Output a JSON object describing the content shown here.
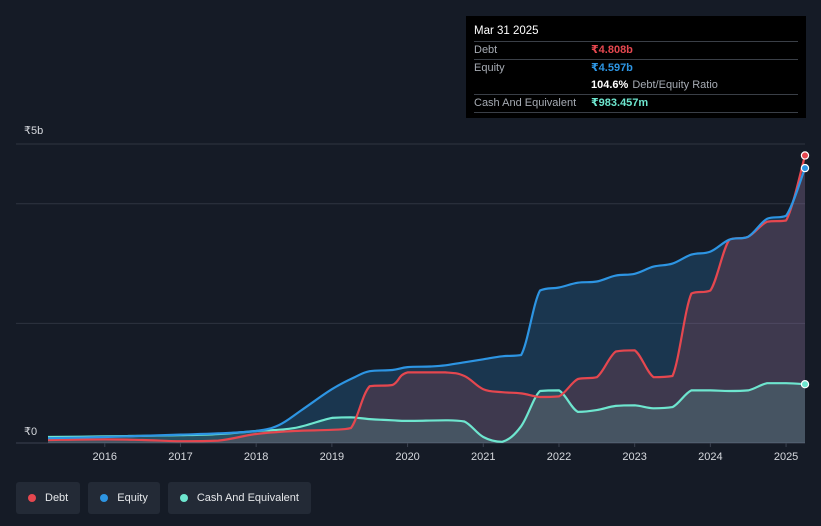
{
  "colors": {
    "debt": "#e5474f",
    "equity": "#2d95e3",
    "cash": "#6ee6cf",
    "grid": "#2e3440",
    "axis_text": "#d6d9de"
  },
  "tooltip": {
    "date": "Mar 31 2025",
    "debt_label": "Debt",
    "debt_value": "₹4.808b",
    "equity_label": "Equity",
    "equity_value": "₹4.597b",
    "ratio_value": "104.6%",
    "ratio_label": "Debt/Equity Ratio",
    "cash_label": "Cash And Equivalent",
    "cash_value": "₹983.457m"
  },
  "legend": {
    "debt": "Debt",
    "equity": "Equity",
    "cash": "Cash And Equivalent"
  },
  "chart_data": {
    "type": "area",
    "title": "",
    "xlabel": "",
    "ylabel": "",
    "y_unit": "₹b",
    "ylim": [
      0,
      5
    ],
    "xlim": [
      2015.25,
      2025.25
    ],
    "y_tick_labels": [
      "₹0",
      "₹5b"
    ],
    "x_tick_labels": [
      "2016",
      "2017",
      "2018",
      "2019",
      "2020",
      "2021",
      "2022",
      "2023",
      "2024",
      "2025"
    ],
    "x_ticks": [
      2016,
      2017,
      2018,
      2019,
      2020,
      2021,
      2022,
      2023,
      2024,
      2025
    ],
    "gridlines": [
      0,
      2,
      4,
      5
    ],
    "series": [
      {
        "name": "Equity",
        "color_key": "equity",
        "points": [
          [
            2015.25,
            0.08
          ],
          [
            2016.0,
            0.1
          ],
          [
            2016.5,
            0.12
          ],
          [
            2017.0,
            0.14
          ],
          [
            2017.5,
            0.16
          ],
          [
            2018.0,
            0.2
          ],
          [
            2018.3,
            0.3
          ],
          [
            2018.6,
            0.55
          ],
          [
            2019.0,
            0.9
          ],
          [
            2019.3,
            1.1
          ],
          [
            2019.5,
            1.2
          ],
          [
            2019.8,
            1.22
          ],
          [
            2020.0,
            1.27
          ],
          [
            2020.3,
            1.28
          ],
          [
            2020.5,
            1.3
          ],
          [
            2020.75,
            1.35
          ],
          [
            2021.0,
            1.4
          ],
          [
            2021.25,
            1.45
          ],
          [
            2021.5,
            1.47
          ],
          [
            2021.75,
            2.55
          ],
          [
            2022.0,
            2.6
          ],
          [
            2022.25,
            2.68
          ],
          [
            2022.5,
            2.7
          ],
          [
            2022.75,
            2.8
          ],
          [
            2023.0,
            2.83
          ],
          [
            2023.25,
            2.95
          ],
          [
            2023.5,
            3.0
          ],
          [
            2023.75,
            3.15
          ],
          [
            2024.0,
            3.2
          ],
          [
            2024.25,
            3.4
          ],
          [
            2024.5,
            3.45
          ],
          [
            2024.75,
            3.75
          ],
          [
            2025.0,
            3.8
          ],
          [
            2025.25,
            4.597
          ]
        ]
      },
      {
        "name": "Debt",
        "color_key": "debt",
        "points": [
          [
            2015.25,
            0.05
          ],
          [
            2016.0,
            0.06
          ],
          [
            2016.5,
            0.05
          ],
          [
            2017.0,
            0.03
          ],
          [
            2017.5,
            0.04
          ],
          [
            2018.0,
            0.15
          ],
          [
            2018.5,
            0.2
          ],
          [
            2019.0,
            0.22
          ],
          [
            2019.25,
            0.25
          ],
          [
            2019.5,
            0.95
          ],
          [
            2019.8,
            0.97
          ],
          [
            2020.0,
            1.18
          ],
          [
            2020.5,
            1.18
          ],
          [
            2020.75,
            1.12
          ],
          [
            2021.0,
            0.9
          ],
          [
            2021.25,
            0.85
          ],
          [
            2021.5,
            0.83
          ],
          [
            2021.75,
            0.77
          ],
          [
            2022.0,
            0.78
          ],
          [
            2022.25,
            1.07
          ],
          [
            2022.5,
            1.1
          ],
          [
            2022.75,
            1.53
          ],
          [
            2023.0,
            1.55
          ],
          [
            2023.25,
            1.1
          ],
          [
            2023.5,
            1.12
          ],
          [
            2023.75,
            2.5
          ],
          [
            2024.0,
            2.55
          ],
          [
            2024.25,
            3.4
          ],
          [
            2024.5,
            3.45
          ],
          [
            2024.75,
            3.7
          ],
          [
            2025.0,
            3.72
          ],
          [
            2025.25,
            4.808
          ]
        ]
      },
      {
        "name": "Cash And Equivalent",
        "color_key": "cash",
        "points": [
          [
            2015.25,
            0.1
          ],
          [
            2016.0,
            0.11
          ],
          [
            2016.5,
            0.12
          ],
          [
            2017.0,
            0.13
          ],
          [
            2017.5,
            0.15
          ],
          [
            2018.0,
            0.2
          ],
          [
            2018.5,
            0.25
          ],
          [
            2019.0,
            0.42
          ],
          [
            2019.25,
            0.43
          ],
          [
            2019.5,
            0.4
          ],
          [
            2019.8,
            0.38
          ],
          [
            2020.0,
            0.37
          ],
          [
            2020.5,
            0.38
          ],
          [
            2020.75,
            0.36
          ],
          [
            2021.0,
            0.1
          ],
          [
            2021.25,
            0.02
          ],
          [
            2021.5,
            0.28
          ],
          [
            2021.75,
            0.87
          ],
          [
            2022.0,
            0.88
          ],
          [
            2022.25,
            0.52
          ],
          [
            2022.5,
            0.55
          ],
          [
            2022.75,
            0.62
          ],
          [
            2023.0,
            0.63
          ],
          [
            2023.25,
            0.58
          ],
          [
            2023.5,
            0.6
          ],
          [
            2023.75,
            0.88
          ],
          [
            2024.0,
            0.88
          ],
          [
            2024.25,
            0.87
          ],
          [
            2024.5,
            0.88
          ],
          [
            2024.75,
            1.0
          ],
          [
            2025.0,
            1.0
          ],
          [
            2025.25,
            0.983
          ]
        ]
      }
    ]
  }
}
